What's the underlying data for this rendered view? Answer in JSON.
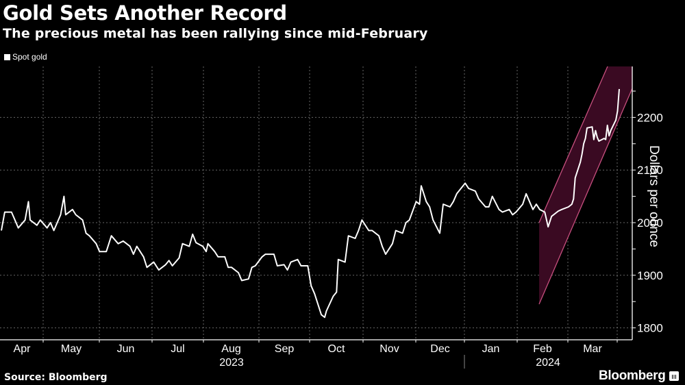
{
  "header": {
    "title": "Gold Sets Another Record",
    "subtitle": "The precious metal has been rallying since mid-February"
  },
  "legend": {
    "items": [
      {
        "label": "Spot gold",
        "color": "#ffffff"
      }
    ]
  },
  "axis": {
    "y_label": "Dollars per ounce",
    "y_ticks": [
      "1800",
      "1900",
      "2000",
      "2100",
      "2200"
    ],
    "x_months": [
      "Apr",
      "May",
      "Jun",
      "Jul",
      "Aug",
      "Sep",
      "Oct",
      "Nov",
      "Dec",
      "Jan",
      "Feb",
      "Mar"
    ],
    "x_years": [
      "2023",
      "2024"
    ]
  },
  "footer": {
    "source": "Source: Bloomberg",
    "brand": "Bloomberg"
  },
  "colors": {
    "background": "#000000",
    "line": "#ffffff",
    "channel_fill": "#3a0a22",
    "channel_edge": "#c8507f",
    "grid": "#8a8a8a"
  },
  "chart_data": {
    "type": "line",
    "title": "Gold Sets Another Record",
    "subtitle": "The precious metal has been rallying since mid-February",
    "xlabel": "",
    "ylabel": "Dollars per ounce",
    "ylim": [
      1780,
      2290
    ],
    "grid": true,
    "legend_position": "top-left",
    "x_range": [
      "2023-03-28",
      "2024-03-21"
    ],
    "series": [
      {
        "name": "Spot gold",
        "points": [
          [
            "2023-03-28",
            1985
          ],
          [
            "2023-03-30",
            2020
          ],
          [
            "2023-04-03",
            2020
          ],
          [
            "2023-04-05",
            2005
          ],
          [
            "2023-04-07",
            1990
          ],
          [
            "2023-04-11",
            2005
          ],
          [
            "2023-04-13",
            2040
          ],
          [
            "2023-04-14",
            2005
          ],
          [
            "2023-04-18",
            1995
          ],
          [
            "2023-04-20",
            2005
          ],
          [
            "2023-04-24",
            1990
          ],
          [
            "2023-04-26",
            2000
          ],
          [
            "2023-04-28",
            1985
          ],
          [
            "2023-05-02",
            2015
          ],
          [
            "2023-05-04",
            2050
          ],
          [
            "2023-05-05",
            2015
          ],
          [
            "2023-05-09",
            2025
          ],
          [
            "2023-05-11",
            2015
          ],
          [
            "2023-05-15",
            2005
          ],
          [
            "2023-05-17",
            1980
          ],
          [
            "2023-05-19",
            1975
          ],
          [
            "2023-05-23",
            1960
          ],
          [
            "2023-05-25",
            1945
          ],
          [
            "2023-05-29",
            1945
          ],
          [
            "2023-06-01",
            1975
          ],
          [
            "2023-06-05",
            1960
          ],
          [
            "2023-06-08",
            1965
          ],
          [
            "2023-06-12",
            1955
          ],
          [
            "2023-06-14",
            1940
          ],
          [
            "2023-06-16",
            1955
          ],
          [
            "2023-06-20",
            1935
          ],
          [
            "2023-06-22",
            1915
          ],
          [
            "2023-06-26",
            1925
          ],
          [
            "2023-06-29",
            1910
          ],
          [
            "2023-07-03",
            1920
          ],
          [
            "2023-07-05",
            1928
          ],
          [
            "2023-07-07",
            1918
          ],
          [
            "2023-07-11",
            1933
          ],
          [
            "2023-07-13",
            1960
          ],
          [
            "2023-07-17",
            1955
          ],
          [
            "2023-07-19",
            1978
          ],
          [
            "2023-07-21",
            1962
          ],
          [
            "2023-07-25",
            1955
          ],
          [
            "2023-07-27",
            1945
          ],
          [
            "2023-07-28",
            1960
          ],
          [
            "2023-08-01",
            1945
          ],
          [
            "2023-08-03",
            1935
          ],
          [
            "2023-08-07",
            1935
          ],
          [
            "2023-08-09",
            1915
          ],
          [
            "2023-08-11",
            1915
          ],
          [
            "2023-08-15",
            1905
          ],
          [
            "2023-08-17",
            1890
          ],
          [
            "2023-08-21",
            1893
          ],
          [
            "2023-08-23",
            1915
          ],
          [
            "2023-08-25",
            1918
          ],
          [
            "2023-08-29",
            1935
          ],
          [
            "2023-08-31",
            1940
          ],
          [
            "2023-09-05",
            1940
          ],
          [
            "2023-09-07",
            1918
          ],
          [
            "2023-09-11",
            1920
          ],
          [
            "2023-09-13",
            1910
          ],
          [
            "2023-09-15",
            1925
          ],
          [
            "2023-09-19",
            1930
          ],
          [
            "2023-09-21",
            1918
          ],
          [
            "2023-09-25",
            1918
          ],
          [
            "2023-09-27",
            1880
          ],
          [
            "2023-09-29",
            1865
          ],
          [
            "2023-10-03",
            1825
          ],
          [
            "2023-10-05",
            1820
          ],
          [
            "2023-10-06",
            1832
          ],
          [
            "2023-10-10",
            1860
          ],
          [
            "2023-10-12",
            1868
          ],
          [
            "2023-10-13",
            1930
          ],
          [
            "2023-10-17",
            1925
          ],
          [
            "2023-10-19",
            1975
          ],
          [
            "2023-10-23",
            1970
          ],
          [
            "2023-10-25",
            1985
          ],
          [
            "2023-10-27",
            2005
          ],
          [
            "2023-10-31",
            1985
          ],
          [
            "2023-11-02",
            1985
          ],
          [
            "2023-11-06",
            1975
          ],
          [
            "2023-11-08",
            1955
          ],
          [
            "2023-11-10",
            1940
          ],
          [
            "2023-11-14",
            1960
          ],
          [
            "2023-11-16",
            1985
          ],
          [
            "2023-11-20",
            1980
          ],
          [
            "2023-11-22",
            2000
          ],
          [
            "2023-11-24",
            2005
          ],
          [
            "2023-11-28",
            2040
          ],
          [
            "2023-11-30",
            2035
          ],
          [
            "2023-12-01",
            2070
          ],
          [
            "2023-12-04",
            2040
          ],
          [
            "2023-12-06",
            2030
          ],
          [
            "2023-12-08",
            2005
          ],
          [
            "2023-12-12",
            1980
          ],
          [
            "2023-12-14",
            2035
          ],
          [
            "2023-12-18",
            2030
          ],
          [
            "2023-12-20",
            2040
          ],
          [
            "2023-12-22",
            2055
          ],
          [
            "2023-12-27",
            2075
          ],
          [
            "2023-12-29",
            2065
          ],
          [
            "2024-01-02",
            2060
          ],
          [
            "2024-01-04",
            2045
          ],
          [
            "2024-01-08",
            2030
          ],
          [
            "2024-01-10",
            2030
          ],
          [
            "2024-01-12",
            2050
          ],
          [
            "2024-01-16",
            2025
          ],
          [
            "2024-01-18",
            2020
          ],
          [
            "2024-01-22",
            2025
          ],
          [
            "2024-01-24",
            2015
          ],
          [
            "2024-01-26",
            2020
          ],
          [
            "2024-01-30",
            2035
          ],
          [
            "2024-02-01",
            2055
          ],
          [
            "2024-02-05",
            2025
          ],
          [
            "2024-02-07",
            2035
          ],
          [
            "2024-02-09",
            2025
          ],
          [
            "2024-02-12",
            2020
          ],
          [
            "2024-02-14",
            1992
          ],
          [
            "2024-02-16",
            2012
          ],
          [
            "2024-02-20",
            2022
          ],
          [
            "2024-02-22",
            2025
          ],
          [
            "2024-02-26",
            2030
          ],
          [
            "2024-02-28",
            2035
          ],
          [
            "2024-02-29",
            2045
          ],
          [
            "2024-03-01",
            2085
          ],
          [
            "2024-03-04",
            2115
          ],
          [
            "2024-03-05",
            2130
          ],
          [
            "2024-03-06",
            2150
          ],
          [
            "2024-03-07",
            2160
          ],
          [
            "2024-03-08",
            2180
          ],
          [
            "2024-03-11",
            2182
          ],
          [
            "2024-03-12",
            2158
          ],
          [
            "2024-03-13",
            2175
          ],
          [
            "2024-03-14",
            2162
          ],
          [
            "2024-03-15",
            2155
          ],
          [
            "2024-03-18",
            2160
          ],
          [
            "2024-03-19",
            2158
          ],
          [
            "2024-03-20",
            2185
          ],
          [
            "2024-03-21",
            2165
          ],
          [
            "2024-03-22",
            2175
          ],
          [
            "2024-03-25",
            2195
          ],
          [
            "2024-03-26",
            2212
          ],
          [
            "2024-03-27",
            2254
          ]
        ]
      }
    ],
    "annotations": [
      {
        "type": "trend-channel",
        "description": "Shaded rising channel from mid-February 2024 to end",
        "upper_start": 2000,
        "lower_start": 1845,
        "lower_end": 2255
      }
    ]
  }
}
